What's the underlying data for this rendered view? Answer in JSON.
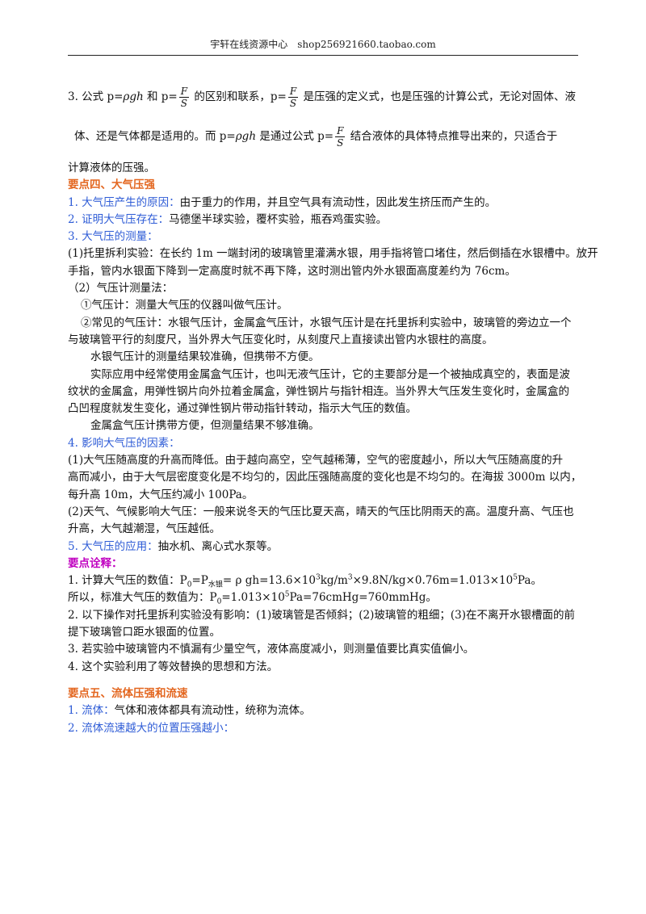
{
  "header": "宇轩在线资源中心　shop256921660.taobao.com",
  "p3": {
    "a": "3. 公式 p=",
    "rho_gh": "ρgh",
    "b": " 和 p=",
    "c": " 的区别和联系，p=",
    "d": " 是压强的定义式，也是压强的计算公式，无论对固体、液",
    "e": "体、还是气体都是适用的。而 p=",
    "f": " 是通过公式 p=",
    "g": " 结合液体的具体特点推导出来的，只适合于",
    "h": "计算液体的压强。",
    "F": "F",
    "S": "S"
  },
  "s4": {
    "title": "要点四、大气压强",
    "i1_label": "1. 大气压产生的原因：",
    "i1_text": "由于重力的作用，并且空气具有流动性，因此发生挤压而产生的。",
    "i2_label": "2. 证明大气压存在：",
    "i2_text": "马德堡半球实验，覆杯实验，瓶吞鸡蛋实验。",
    "i3_label": "3. 大气压的测量：",
    "i3_a": "(1)托里拆利实验：在长约 1m 一端封闭的玻璃管里灌满水银，用手指将管口堵住，然后倒插在水银槽中。放开",
    "i3_b": "手指，管内水银面下降到一定高度时就不再下降，这时测出管内外水银面高度差约为 76cm。",
    "i3_c": "（2）气压计测量法：",
    "i3_d": "①气压计：测量大气压的仪器叫做气压计。",
    "i3_e": "②常见的气压计：水银气压计，金属盒气压计，水银气压计是在托里拆利实验中，玻璃管的旁边立一个",
    "i3_f": "与玻璃管平行的刻度尺，当外界大气压变化时，从刻度尺上直接读出管内水银柱的高度。",
    "i3_g": "水银气压计的测量结果较准确，但携带不方便。",
    "i3_h": "实际应用中经常使用金属盒气压计，也叫无液气压计，它的主要部分是一个被抽成真空的，表面是波",
    "i3_i": "纹状的金属盒，用弹性钢片向外拉着金属盒，弹性钢片与指针相连。当外界大气压发生变化时，金属盒的",
    "i3_j": "凸凹程度就发生变化，通过弹性钢片带动指针转动，指示大气压的数值。",
    "i3_k": "金属盒气压计携带方便，但测量结果不够准确。",
    "i4_label": "4. 影响大气压的因素：",
    "i4_a": "(1)大气压随高度的升高而降低。由于越向高空，空气越稀薄，空气的密度越小，所以大气压随高度的升",
    "i4_b": "高而减小，由于大气层密度变化是不均匀的，因此压强随高度的变化也是不均匀的。在海拔 3000m 以内，",
    "i4_c": "每升高 10m，大气压约减小 100Pa。",
    "i4_d": "(2)天气、气候影响大气压：一般来说冬天的气压比夏天高，晴天的气压比阴雨天的高。温度升高、气压也",
    "i4_e": "升高，大气越潮湿，气压越低。",
    "i5_label": "5. 大气压的应用：",
    "i5_text": "抽水机、离心式水泵等。"
  },
  "notes": {
    "title": "要点诠释：",
    "n1_a": "1. 计算大气压的数值：P",
    "n1_sub0": "0",
    "n1_b": "=P",
    "n1_sub": "水银",
    "n1_c": "= ρ gh=13.6×10",
    "n1_sup3": "3",
    "n1_d": "kg/m",
    "n1_sup3b": "3",
    "n1_e": "×9.8N/kg×0.76m=1.013×10",
    "n1_sup5": "5",
    "n1_f": "Pa。",
    "n1b_a": "所以，标准大气压的数值为：P",
    "n1b_sub0": "0",
    "n1b_b": "=1.013×10",
    "n1b_sup5": "5",
    "n1b_c": "Pa=76cmHg=760mmHg。",
    "n2_a": "2. 以下操作对托里拆利实验没有影响：(1)玻璃管是否倾斜；(2)玻璃管的粗细；(3)在不离开水银槽面的前",
    "n2_b": "提下玻璃管口距水银面的位置。",
    "n3": "3. 若实验中玻璃管内不慎漏有少量空气，液体高度减小，则测量值要比真实值偏小。",
    "n4": "4. 这个实验利用了等效替换的思想和方法。"
  },
  "s5": {
    "title": "要点五、流体压强和流速",
    "i1_label": "1. 流体：",
    "i1_text": "气体和液体都具有流动性，统称为流体。",
    "i2_label": "2. 流体流速越大的位置压强越小："
  }
}
